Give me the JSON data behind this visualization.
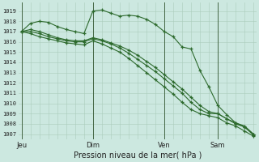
{
  "background_color": "#cce8e0",
  "grid_color": "#aaccbb",
  "line_color": "#2d6a2d",
  "ylabel_values": [
    1007,
    1008,
    1009,
    1010,
    1011,
    1012,
    1013,
    1014,
    1015,
    1016,
    1017,
    1018,
    1019
  ],
  "ylim": [
    1006.5,
    1019.8
  ],
  "xlim": [
    -0.3,
    26.3
  ],
  "xlabel": "Pression niveau de la mer( hPa )",
  "xtick_labels": [
    "Jeu",
    "Dim",
    "Ven",
    "Sam"
  ],
  "xtick_positions": [
    0,
    8,
    16,
    22
  ],
  "vline_positions": [
    0,
    8,
    16,
    22
  ],
  "line1_x": [
    0,
    1,
    2,
    3,
    4,
    5,
    6,
    7,
    8,
    9,
    10,
    11,
    12,
    13,
    14,
    15,
    16,
    17,
    18,
    19,
    20,
    21,
    22,
    23,
    24,
    25,
    26
  ],
  "line1_y": [
    1017.0,
    1017.8,
    1018.0,
    1017.9,
    1017.5,
    1017.2,
    1017.0,
    1016.8,
    1019.0,
    1019.1,
    1018.8,
    1018.5,
    1018.6,
    1018.5,
    1018.2,
    1017.7,
    1017.0,
    1016.5,
    1015.5,
    1015.3,
    1013.2,
    1011.6,
    1009.8,
    1008.9,
    1008.1,
    1007.8,
    1007.0
  ],
  "line2_x": [
    0,
    1,
    2,
    3,
    4,
    5,
    6,
    7,
    8,
    9,
    10,
    11,
    12,
    13,
    14,
    15,
    16,
    17,
    18,
    19,
    20,
    21,
    22,
    23,
    24,
    25,
    26
  ],
  "line2_y": [
    1017.0,
    1017.2,
    1017.0,
    1016.7,
    1016.4,
    1016.2,
    1016.1,
    1016.1,
    1016.4,
    1016.2,
    1015.9,
    1015.6,
    1015.2,
    1014.7,
    1014.1,
    1013.5,
    1012.8,
    1012.1,
    1011.4,
    1010.6,
    1009.8,
    1009.2,
    1009.0,
    1008.5,
    1008.0,
    1007.7,
    1007.0
  ],
  "line3_x": [
    0,
    1,
    2,
    3,
    4,
    5,
    6,
    7,
    8,
    9,
    10,
    11,
    12,
    13,
    14,
    15,
    16,
    17,
    18,
    19,
    20,
    21,
    22,
    23,
    24,
    25,
    26
  ],
  "line3_y": [
    1017.0,
    1017.0,
    1016.8,
    1016.5,
    1016.3,
    1016.1,
    1016.0,
    1016.0,
    1016.3,
    1016.1,
    1015.8,
    1015.4,
    1014.9,
    1014.3,
    1013.7,
    1013.1,
    1012.4,
    1011.7,
    1011.0,
    1010.1,
    1009.4,
    1009.0,
    1009.0,
    1008.5,
    1008.1,
    1007.7,
    1006.9
  ],
  "line4_x": [
    0,
    1,
    2,
    3,
    4,
    5,
    6,
    7,
    8,
    9,
    10,
    11,
    12,
    13,
    14,
    15,
    16,
    17,
    18,
    19,
    20,
    21,
    22,
    23,
    24,
    25,
    26
  ],
  "line4_y": [
    1017.0,
    1016.8,
    1016.5,
    1016.3,
    1016.1,
    1015.9,
    1015.8,
    1015.7,
    1016.1,
    1015.8,
    1015.4,
    1015.0,
    1014.4,
    1013.7,
    1013.0,
    1012.3,
    1011.6,
    1010.9,
    1010.1,
    1009.4,
    1009.0,
    1008.8,
    1008.6,
    1008.1,
    1007.8,
    1007.3,
    1006.8
  ]
}
